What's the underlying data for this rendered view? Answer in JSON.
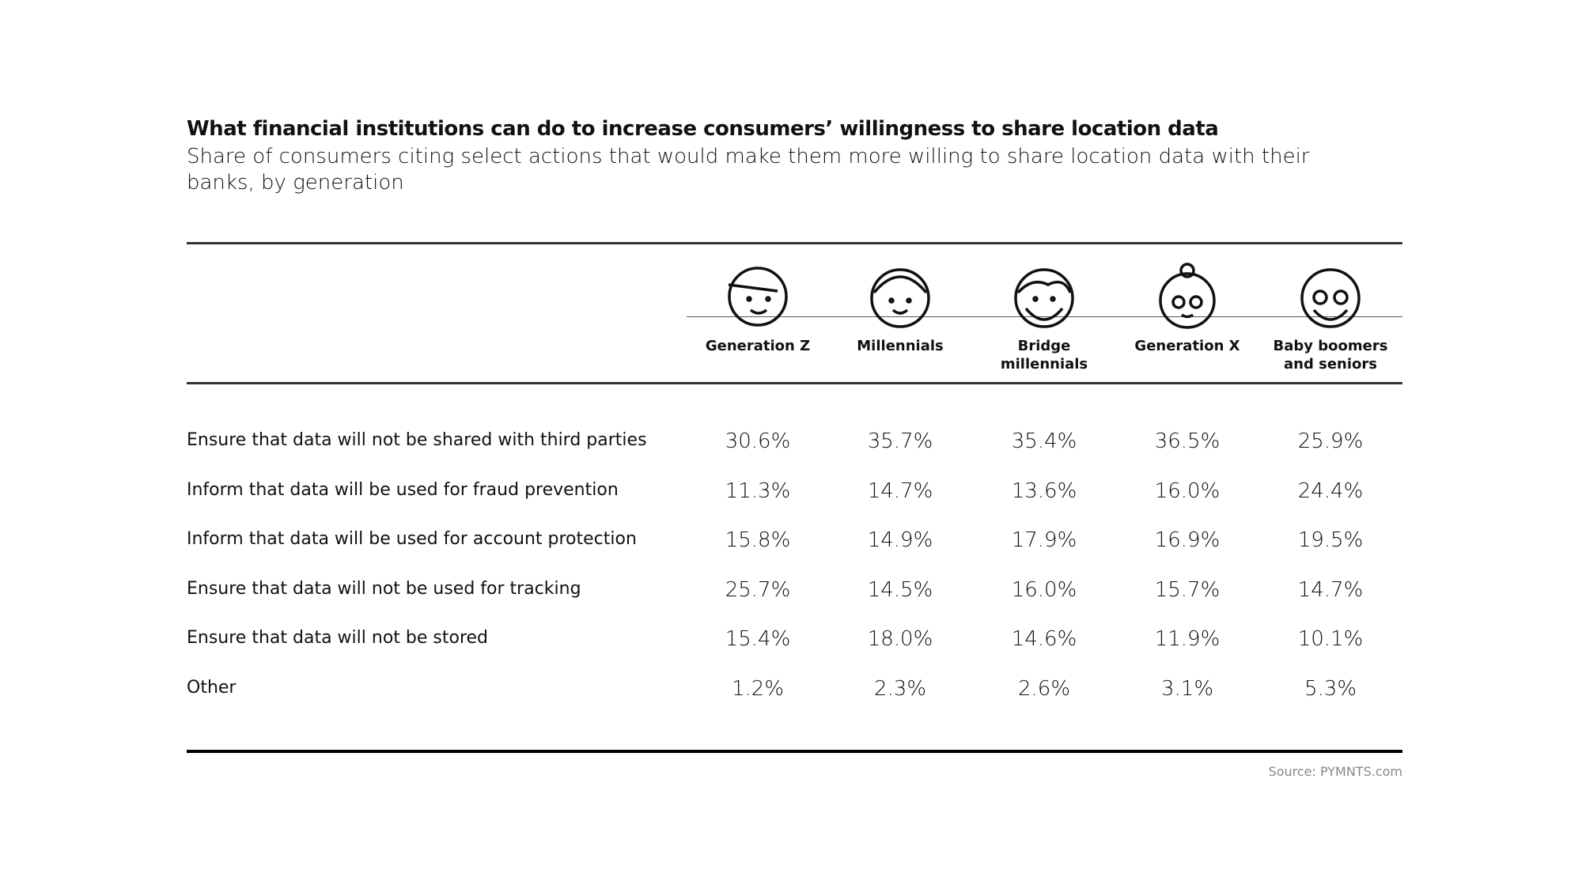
{
  "header": {
    "title": "What financial institutions can do to increase consumers’ willingness to share location data",
    "subtitle": "Share of consumers citing select actions that would make them more willing to share location data with their banks, by generation"
  },
  "table": {
    "columns": [
      "Generation Z",
      "Millennials",
      "Bridge millennials",
      "Generation X",
      "Baby boomers and seniors"
    ],
    "rows": [
      [
        "Ensure that data will not be shared with third parties",
        "30.6%",
        "35.7%",
        "35.4%",
        "36.5%",
        "25.9%"
      ],
      [
        "Inform that data will be used for fraud prevention",
        "11.3%",
        "14.7%",
        "13.6%",
        "16.0%",
        "24.4%"
      ],
      [
        "Inform that data will be used for account protection",
        "15.8%",
        "14.9%",
        "17.9%",
        "16.9%",
        "19.5%"
      ],
      [
        "Ensure that data will not be used for tracking",
        "25.7%",
        "14.5%",
        "16.0%",
        "15.7%",
        "14.7%"
      ],
      [
        "Ensure that data will not be stored",
        "15.4%",
        "18.0%",
        "14.6%",
        "11.9%",
        "10.1%"
      ],
      [
        "Other",
        "1.2%",
        "2.3%",
        "2.6%",
        "3.1%",
        "5.3%"
      ]
    ]
  },
  "footer": {
    "source": "Source: PYMNTS.com"
  }
}
